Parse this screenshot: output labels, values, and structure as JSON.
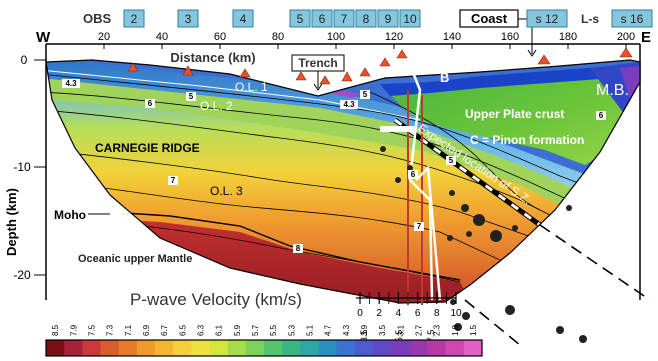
{
  "header": {
    "obs_label": "OBS",
    "obs_numbers": [
      "2",
      "3",
      "4",
      "5",
      "6",
      "7",
      "8",
      "9",
      "10"
    ],
    "coast_label": "Coast",
    "land_station": "s 12",
    "land_station_right": "s 16",
    "ls_label": "L-s",
    "west": "W",
    "east": "E"
  },
  "axes": {
    "x_ticks": [
      "20",
      "40",
      "60",
      "80",
      "100",
      "120",
      "140",
      "160",
      "180",
      "200"
    ],
    "x_label": "Distance (km)",
    "y_label": "Depth (km)",
    "y_ticks": [
      "0",
      "-10",
      "-20"
    ]
  },
  "labels": {
    "trench": "Trench",
    "ol1": "O.L. 1",
    "ol2": "O.L. 2",
    "ol3": "O.L. 3",
    "ridge": "CARNEGIE RIDGE",
    "moho": "Moho",
    "mantle": "Oceanic upper Mantle",
    "plate": "Upper Plate crust",
    "pinon": "C = Pinon formation",
    "a": "A",
    "b": "B",
    "mb": "M.B.",
    "sz": "Expected location of S.Z."
  },
  "contours": [
    "4.3",
    "6",
    "5",
    "4.3",
    "5",
    "6",
    "7",
    "8",
    "6",
    "5",
    "7"
  ],
  "inset": {
    "x_ticks": [
      "0",
      "2",
      "4",
      "6",
      "8",
      "10"
    ],
    "x_ticks_lower": [
      "3.5",
      "5.5",
      "7.5"
    ]
  },
  "colorbar": {
    "title": "P-wave Velocity (km/s)",
    "values": [
      "8.5",
      "7.9",
      "7.5",
      "7.3",
      "7.1",
      "6.9",
      "6.7",
      "6.5",
      "6.3",
      "6.1",
      "5.9",
      "5.7",
      "5.5",
      "5.3",
      "5.1",
      "4.7",
      "4.3",
      "3.9",
      "3.5",
      "3.1",
      "2.7",
      "2.3",
      "1.9",
      "1.5"
    ],
    "colors": [
      "#7a1016",
      "#a6213c",
      "#c83a3a",
      "#d95c2c",
      "#e57a28",
      "#ee9a2a",
      "#f3b532",
      "#f5cf3a",
      "#efe23d",
      "#d3e63e",
      "#a8dc4a",
      "#7ed05a",
      "#55c46c",
      "#38b585",
      "#2ea6a3",
      "#2c8fc0",
      "#3a74cf",
      "#4d5ad2",
      "#6048c8",
      "#7a3db9",
      "#9838ad",
      "#b53aa6",
      "#cf47b0",
      "#e060c6"
    ]
  },
  "colors": {
    "obs_box_fill": "#86c5de",
    "obs_box_stroke": "#2a7fa6",
    "station_triangle": "#e8502c",
    "model_outline": "#000000"
  }
}
